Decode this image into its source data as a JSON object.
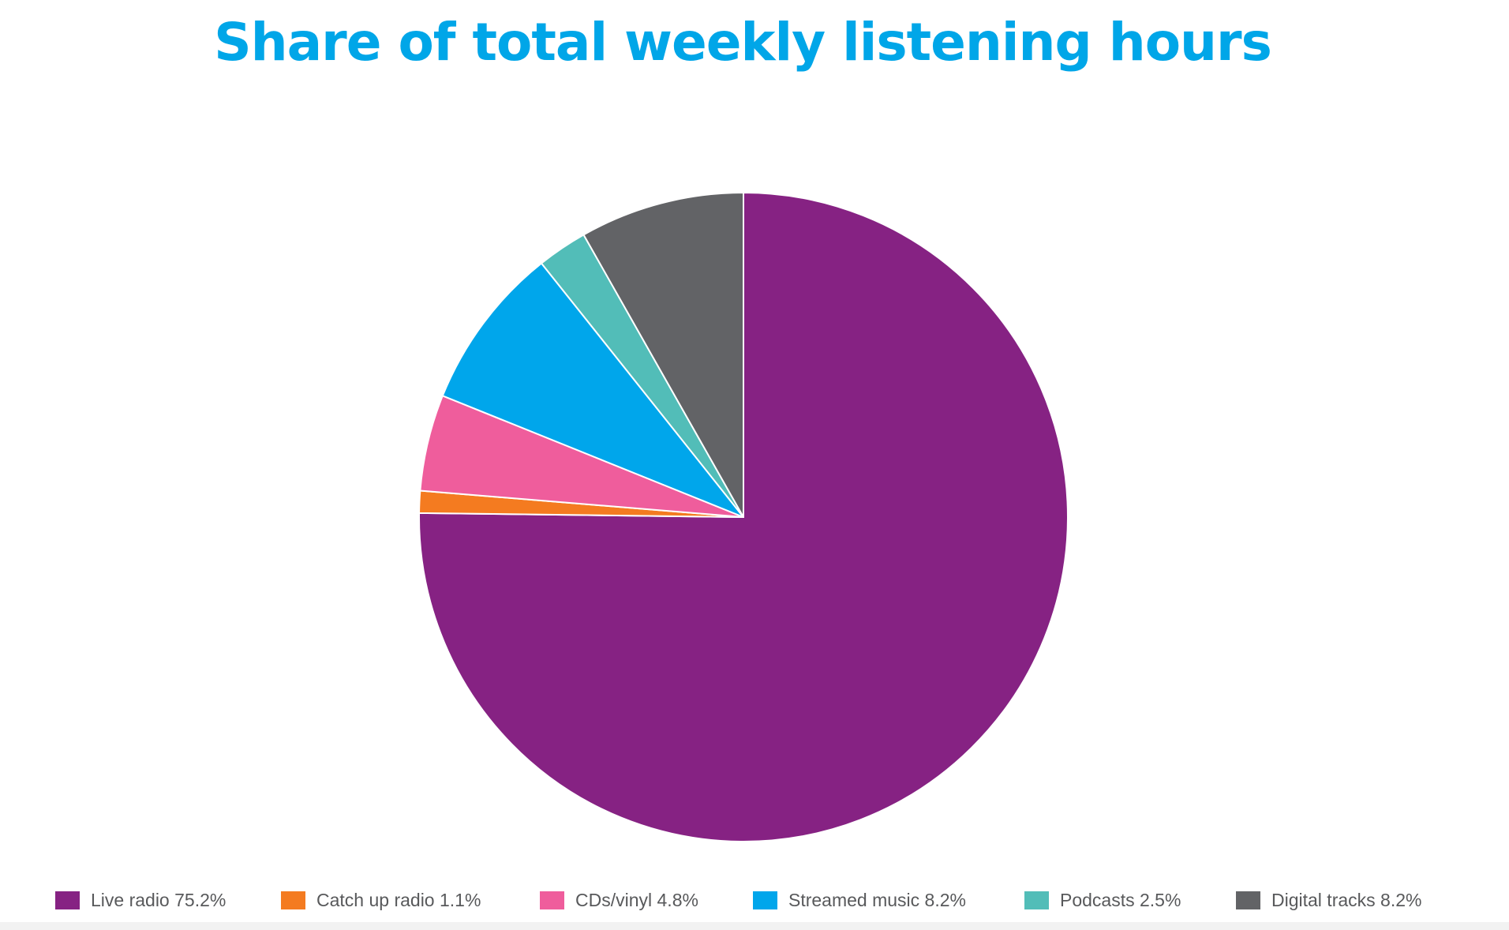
{
  "chart_data": {
    "type": "pie",
    "title": "Share of total weekly listening hours",
    "slices": [
      {
        "label": "Live radio",
        "value": 75.2,
        "color": "#862283"
      },
      {
        "label": "Catch up radio",
        "value": 1.1,
        "color": "#f47b20"
      },
      {
        "label": "CDs/vinyl",
        "value": 4.8,
        "color": "#ef5d9c"
      },
      {
        "label": "Streamed music",
        "value": 8.2,
        "color": "#00a6eb"
      },
      {
        "label": "Podcasts",
        "value": 2.5,
        "color": "#52bdb8"
      },
      {
        "label": "Digital tracks",
        "value": 8.2,
        "color": "#626366"
      }
    ],
    "legend": {
      "placement": "bottom",
      "items": [
        "Live radio 75.2%",
        "Catch up radio 1.1%",
        "CDs/vinyl 4.8%",
        "Streamed music 8.2%",
        "Podcasts 2.5%",
        "Digital tracks 8.2%"
      ]
    }
  },
  "colors": {
    "title": "#00a6e8",
    "legend_text": "#58595b",
    "slice_border": "#ffffff"
  }
}
